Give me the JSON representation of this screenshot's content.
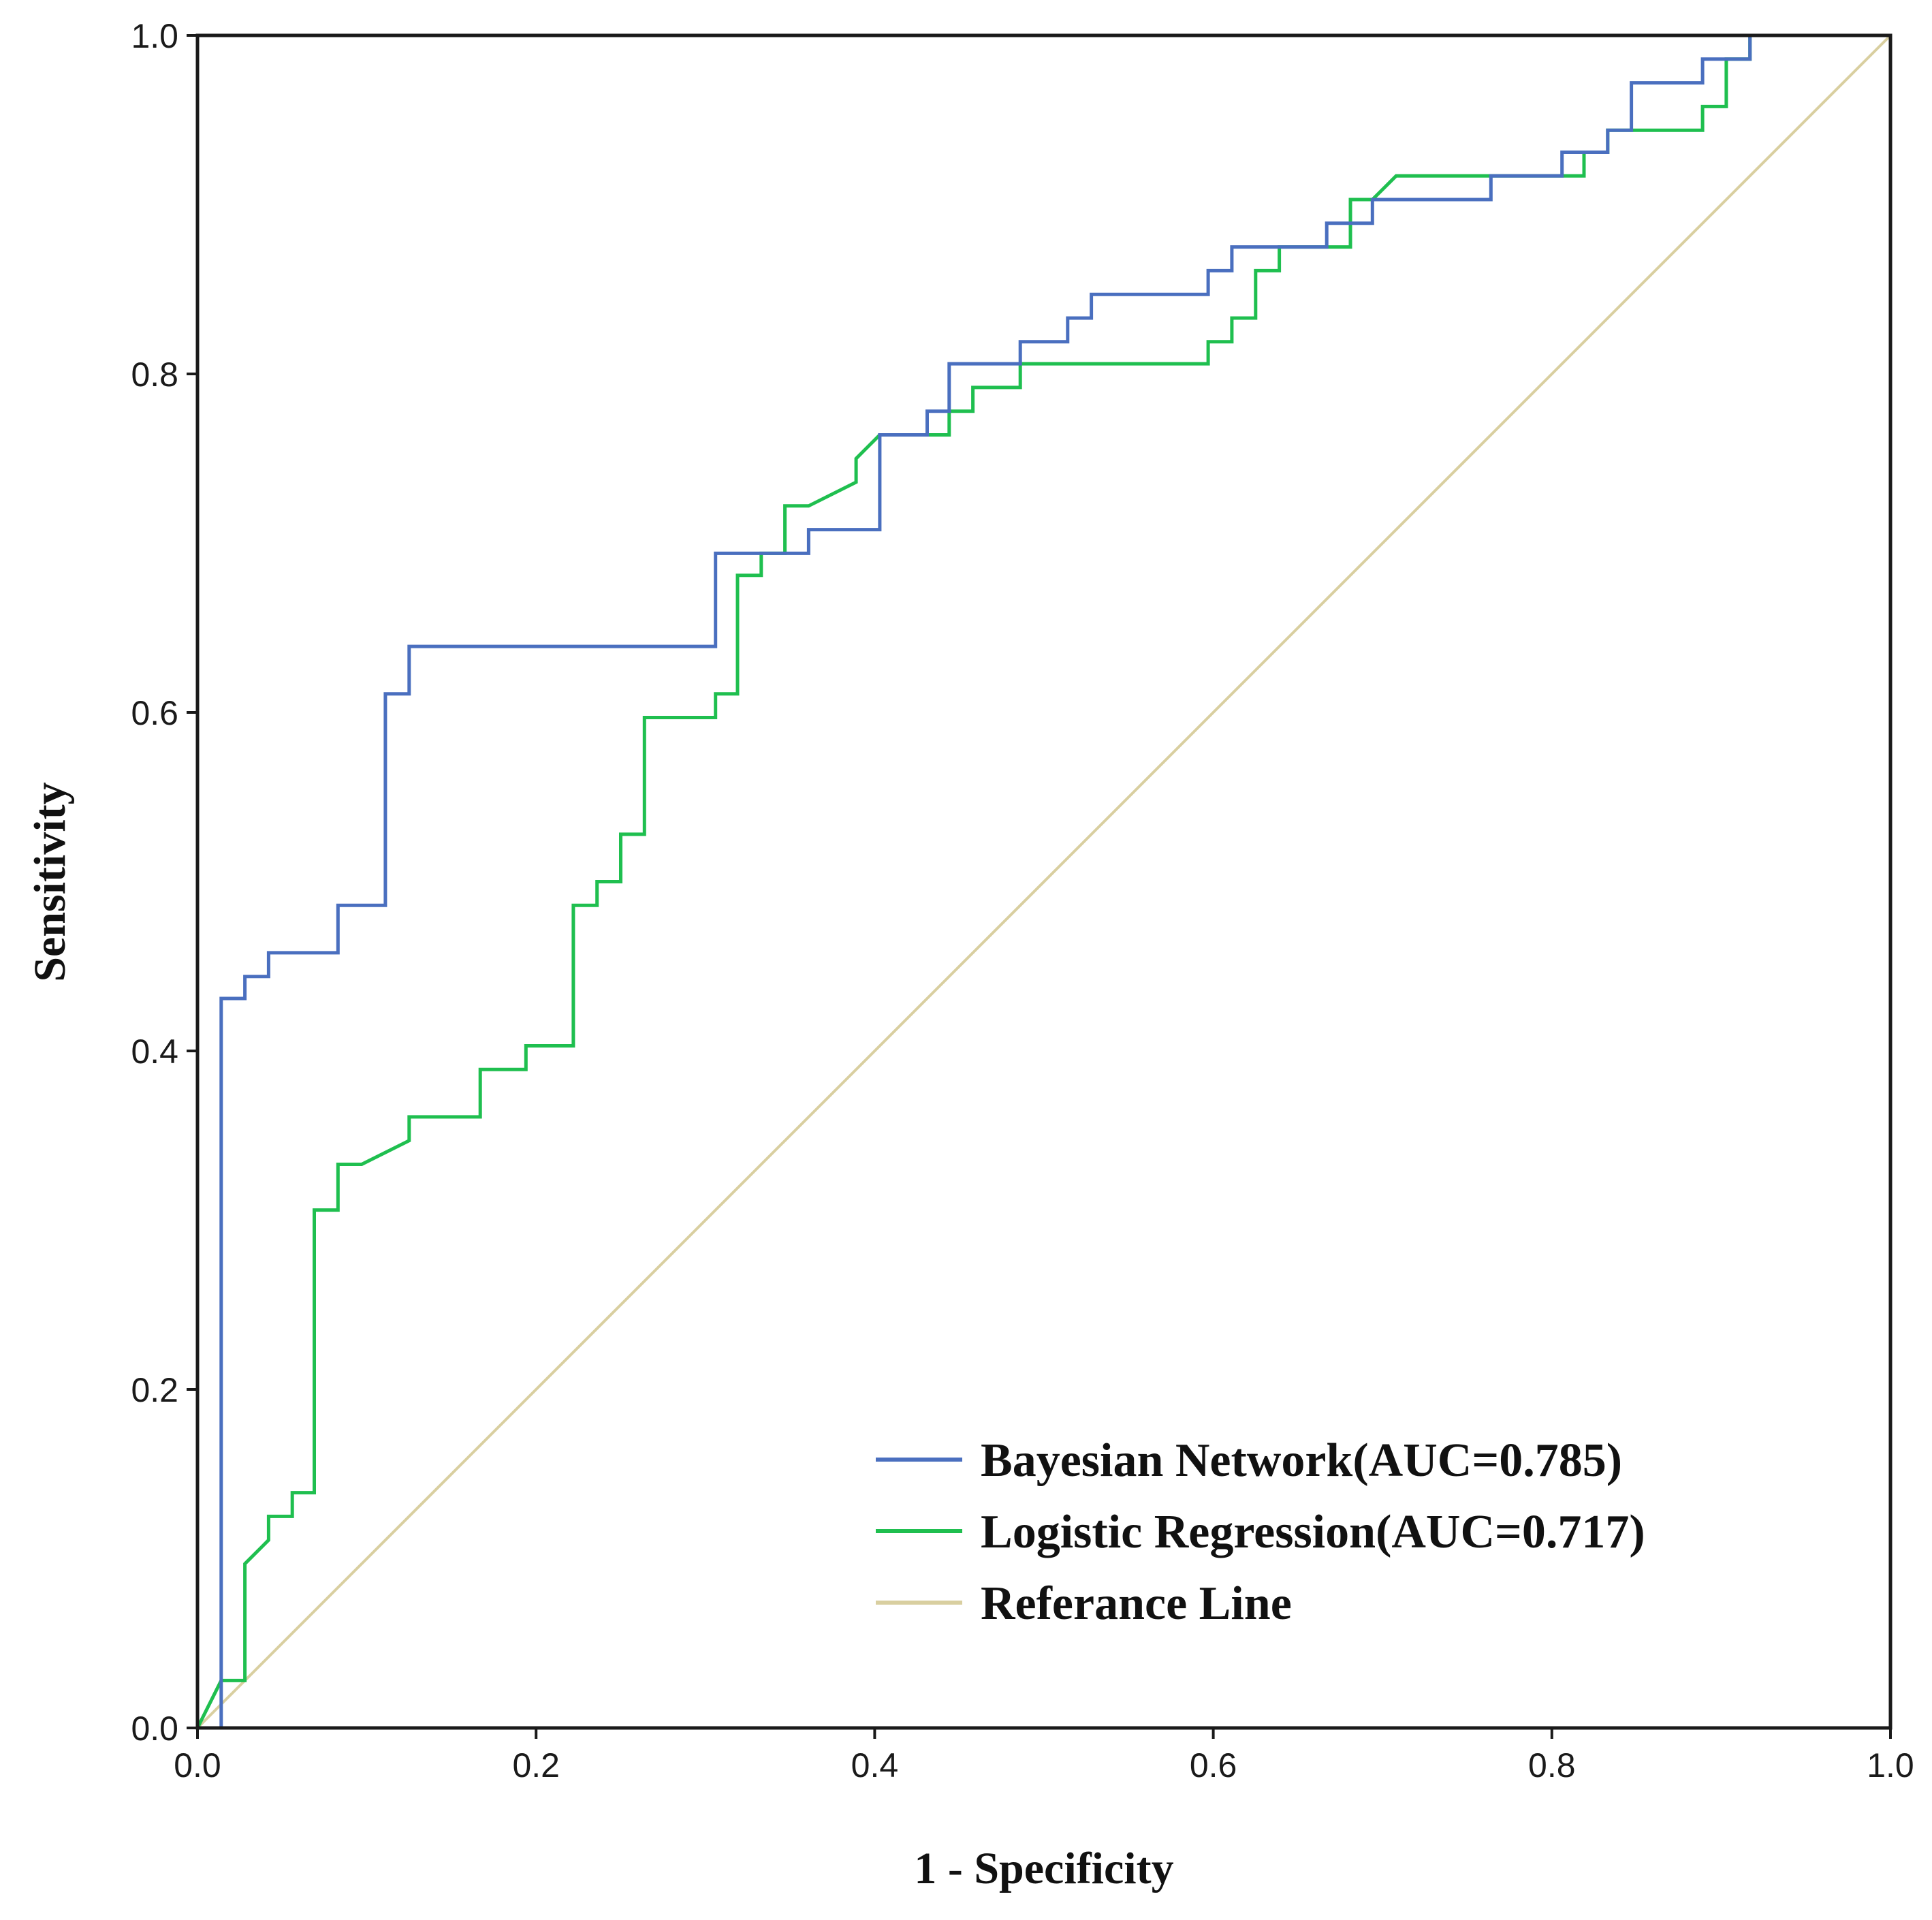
{
  "chart_data": {
    "type": "line",
    "title": "",
    "xlabel": "1 - Specificity",
    "ylabel": "Sensitivity",
    "xlim": [
      0.0,
      1.0
    ],
    "ylim": [
      0.0,
      1.0
    ],
    "x_ticks": [
      "0.0",
      "0.2",
      "0.4",
      "0.6",
      "0.8",
      "1.0"
    ],
    "y_ticks": [
      "0.0",
      "0.2",
      "0.4",
      "0.6",
      "0.8",
      "1.0"
    ],
    "grid": false,
    "legend_position": "bottom-right",
    "series": [
      {
        "name": "Bayesian Network(AUC=0.785)",
        "color": "#4a6fbf",
        "points": [
          [
            0.0,
            0.0
          ],
          [
            0.014,
            0.0
          ],
          [
            0.014,
            0.431
          ],
          [
            0.028,
            0.431
          ],
          [
            0.028,
            0.444
          ],
          [
            0.042,
            0.444
          ],
          [
            0.042,
            0.458
          ],
          [
            0.083,
            0.458
          ],
          [
            0.083,
            0.486
          ],
          [
            0.111,
            0.486
          ],
          [
            0.111,
            0.611
          ],
          [
            0.125,
            0.611
          ],
          [
            0.125,
            0.639
          ],
          [
            0.306,
            0.639
          ],
          [
            0.306,
            0.694
          ],
          [
            0.361,
            0.694
          ],
          [
            0.361,
            0.708
          ],
          [
            0.403,
            0.708
          ],
          [
            0.403,
            0.764
          ],
          [
            0.431,
            0.764
          ],
          [
            0.431,
            0.778
          ],
          [
            0.444,
            0.778
          ],
          [
            0.444,
            0.806
          ],
          [
            0.486,
            0.806
          ],
          [
            0.486,
            0.819
          ],
          [
            0.514,
            0.819
          ],
          [
            0.514,
            0.833
          ],
          [
            0.528,
            0.833
          ],
          [
            0.528,
            0.847
          ],
          [
            0.597,
            0.847
          ],
          [
            0.597,
            0.861
          ],
          [
            0.611,
            0.861
          ],
          [
            0.611,
            0.875
          ],
          [
            0.667,
            0.875
          ],
          [
            0.667,
            0.889
          ],
          [
            0.694,
            0.889
          ],
          [
            0.694,
            0.903
          ],
          [
            0.764,
            0.903
          ],
          [
            0.764,
            0.917
          ],
          [
            0.806,
            0.917
          ],
          [
            0.806,
            0.931
          ],
          [
            0.819,
            0.931
          ],
          [
            0.833,
            0.931
          ],
          [
            0.833,
            0.944
          ],
          [
            0.847,
            0.944
          ],
          [
            0.847,
            0.972
          ],
          [
            0.889,
            0.972
          ],
          [
            0.889,
            0.986
          ],
          [
            0.917,
            0.986
          ],
          [
            0.917,
            1.0
          ],
          [
            1.0,
            1.0
          ]
        ]
      },
      {
        "name": "Logistic Regression(AUC=0.717)",
        "color": "#1fbf4f",
        "points": [
          [
            0.0,
            0.0
          ],
          [
            0.014,
            0.028
          ],
          [
            0.028,
            0.028
          ],
          [
            0.028,
            0.097
          ],
          [
            0.042,
            0.111
          ],
          [
            0.042,
            0.125
          ],
          [
            0.056,
            0.125
          ],
          [
            0.056,
            0.139
          ],
          [
            0.069,
            0.139
          ],
          [
            0.069,
            0.306
          ],
          [
            0.083,
            0.306
          ],
          [
            0.083,
            0.333
          ],
          [
            0.097,
            0.333
          ],
          [
            0.125,
            0.347
          ],
          [
            0.125,
            0.361
          ],
          [
            0.167,
            0.361
          ],
          [
            0.167,
            0.389
          ],
          [
            0.194,
            0.389
          ],
          [
            0.194,
            0.403
          ],
          [
            0.222,
            0.403
          ],
          [
            0.222,
            0.486
          ],
          [
            0.236,
            0.486
          ],
          [
            0.236,
            0.5
          ],
          [
            0.25,
            0.5
          ],
          [
            0.25,
            0.528
          ],
          [
            0.264,
            0.528
          ],
          [
            0.264,
            0.597
          ],
          [
            0.306,
            0.597
          ],
          [
            0.306,
            0.611
          ],
          [
            0.319,
            0.611
          ],
          [
            0.319,
            0.681
          ],
          [
            0.333,
            0.681
          ],
          [
            0.333,
            0.694
          ],
          [
            0.347,
            0.694
          ],
          [
            0.347,
            0.722
          ],
          [
            0.361,
            0.722
          ],
          [
            0.389,
            0.736
          ],
          [
            0.389,
            0.75
          ],
          [
            0.403,
            0.764
          ],
          [
            0.444,
            0.764
          ],
          [
            0.444,
            0.778
          ],
          [
            0.458,
            0.778
          ],
          [
            0.458,
            0.792
          ],
          [
            0.486,
            0.792
          ],
          [
            0.486,
            0.806
          ],
          [
            0.597,
            0.806
          ],
          [
            0.597,
            0.819
          ],
          [
            0.611,
            0.819
          ],
          [
            0.611,
            0.833
          ],
          [
            0.625,
            0.833
          ],
          [
            0.625,
            0.861
          ],
          [
            0.639,
            0.861
          ],
          [
            0.639,
            0.875
          ],
          [
            0.681,
            0.875
          ],
          [
            0.681,
            0.903
          ],
          [
            0.694,
            0.903
          ],
          [
            0.708,
            0.917
          ],
          [
            0.819,
            0.917
          ],
          [
            0.819,
            0.931
          ],
          [
            0.833,
            0.931
          ],
          [
            0.833,
            0.944
          ],
          [
            0.889,
            0.944
          ],
          [
            0.889,
            0.958
          ],
          [
            0.903,
            0.958
          ],
          [
            0.903,
            0.986
          ],
          [
            0.917,
            0.986
          ],
          [
            0.917,
            1.0
          ],
          [
            1.0,
            1.0
          ]
        ]
      },
      {
        "name": "Referance Line",
        "color": "#d9cfa0",
        "points": [
          [
            0.0,
            0.0
          ],
          [
            1.0,
            1.0
          ]
        ]
      }
    ]
  }
}
